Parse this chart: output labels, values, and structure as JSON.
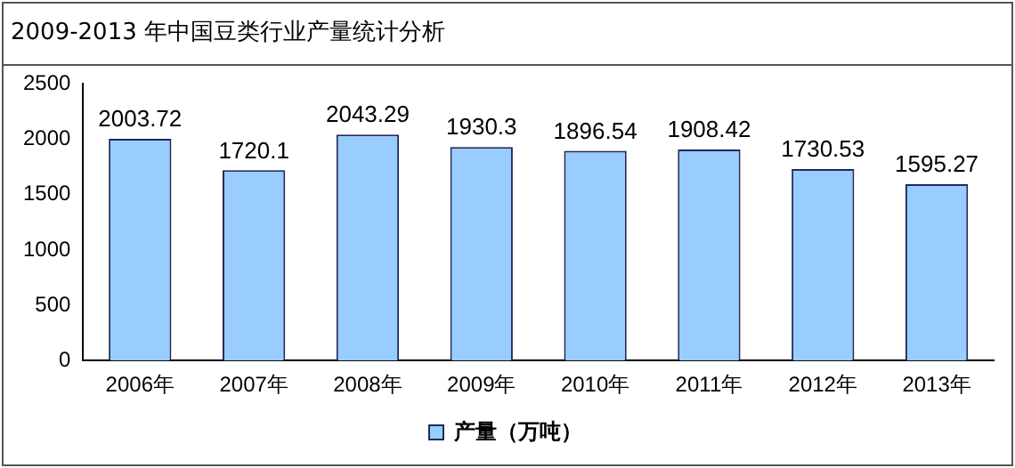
{
  "chart_data": {
    "type": "bar",
    "title": "2009-2013 年中国豆类行业产量统计分析",
    "categories": [
      "2006年",
      "2007年",
      "2008年",
      "2009年",
      "2010年",
      "2011年",
      "2012年",
      "2013年"
    ],
    "series": [
      {
        "name": "产量（万吨）",
        "color": "#99ccff",
        "values": [
          2003.72,
          1720.1,
          2043.29,
          1930.3,
          1896.54,
          1908.42,
          1730.53,
          1595.27
        ]
      }
    ],
    "ylim": [
      0,
      2500
    ],
    "yticks": [
      0,
      500,
      1000,
      1500,
      2000,
      2500
    ],
    "grid": false,
    "data_labels": true,
    "legend": "bottom"
  }
}
